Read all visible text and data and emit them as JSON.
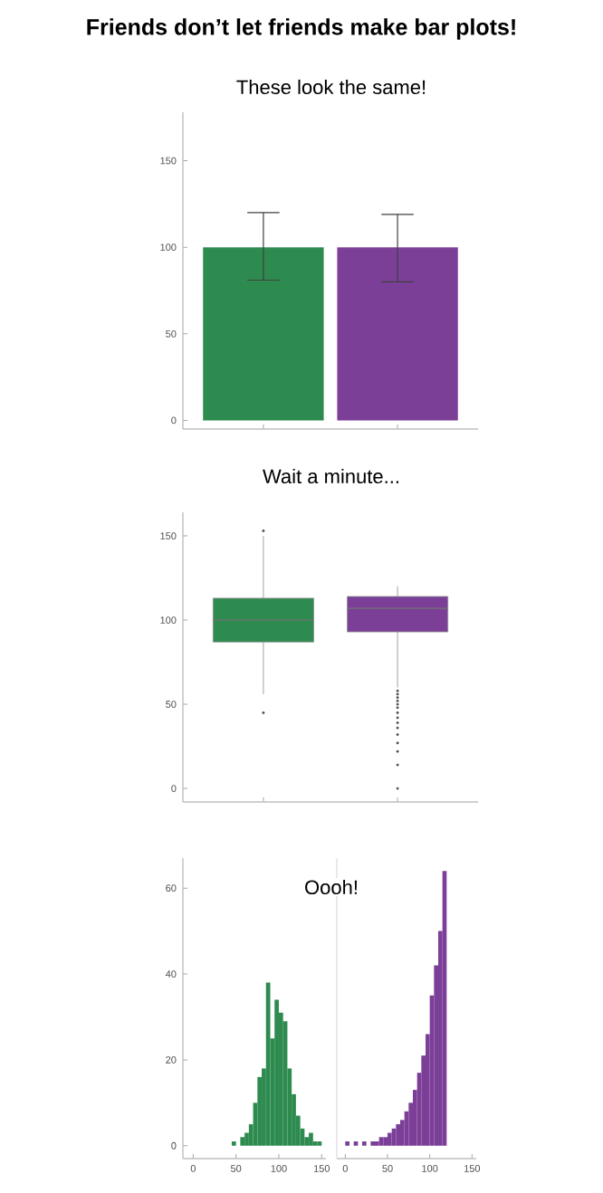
{
  "chart_data": [
    {
      "type": "bar",
      "title": "Friends don’t let friends make bar plots!",
      "subtitle": "These look the same!",
      "categories": [
        null,
        null
      ],
      "values": [
        100,
        100
      ],
      "colors": [
        "#2e8b4f",
        "#7c3f98"
      ],
      "errors": [
        [
          81,
          120
        ],
        [
          80,
          119
        ]
      ],
      "ylim": [
        -5,
        178
      ],
      "yticks": [
        0,
        50,
        100,
        150
      ],
      "tick_labels": "y"
    },
    {
      "type": "box",
      "title": "Wait a minute...",
      "categories": [
        null,
        null
      ],
      "colors": [
        "#2e8b4f",
        "#7c3f98"
      ],
      "boxes": [
        {
          "low": 56,
          "q1": 87,
          "median": 100,
          "q3": 113,
          "high": 150,
          "outliers": [
            153,
            45
          ]
        },
        {
          "low": 60,
          "q1": 93,
          "median": 107,
          "q3": 114,
          "high": 120,
          "outliers": [
            58,
            56,
            54,
            52,
            50,
            48,
            45,
            42,
            39,
            36,
            32,
            27,
            22,
            14,
            0
          ]
        }
      ],
      "ylim": [
        -8,
        164
      ],
      "yticks": [
        0,
        50,
        100,
        150
      ],
      "tick_labels": "y"
    },
    {
      "type": "histogram",
      "title": "Oooh!",
      "color": "#2e8b4f",
      "bins": [
        45,
        50,
        55,
        60,
        65,
        70,
        75,
        80,
        85,
        90,
        95,
        100,
        105,
        110,
        115,
        120,
        125,
        130,
        135,
        140,
        145,
        150
      ],
      "values": [
        1,
        null,
        2,
        3,
        5,
        10,
        16,
        18,
        38,
        25,
        34,
        31,
        29,
        18,
        12,
        7,
        4,
        2,
        3,
        1,
        1
      ],
      "xlim": [
        -12,
        155
      ],
      "xticks": [
        0,
        50,
        100,
        150
      ],
      "ylim": [
        -3,
        67
      ],
      "yticks": [
        0,
        20,
        40,
        60
      ]
    },
    {
      "type": "histogram",
      "color": "#7c3f98",
      "bins": [
        0,
        5,
        10,
        15,
        20,
        25,
        30,
        35,
        40,
        45,
        50,
        55,
        60,
        65,
        70,
        75,
        80,
        85,
        90,
        95,
        100,
        105,
        110,
        115,
        120
      ],
      "values": [
        1,
        null,
        1,
        null,
        1,
        null,
        1,
        1,
        2,
        2,
        3,
        4,
        5,
        6,
        8,
        10,
        13,
        17,
        21,
        26,
        35,
        42,
        50,
        64
      ],
      "xlim": [
        -10,
        155
      ],
      "xticks": [
        0,
        50,
        100,
        150
      ],
      "ylim": [
        -3,
        67
      ],
      "tick_labels": "x"
    }
  ]
}
